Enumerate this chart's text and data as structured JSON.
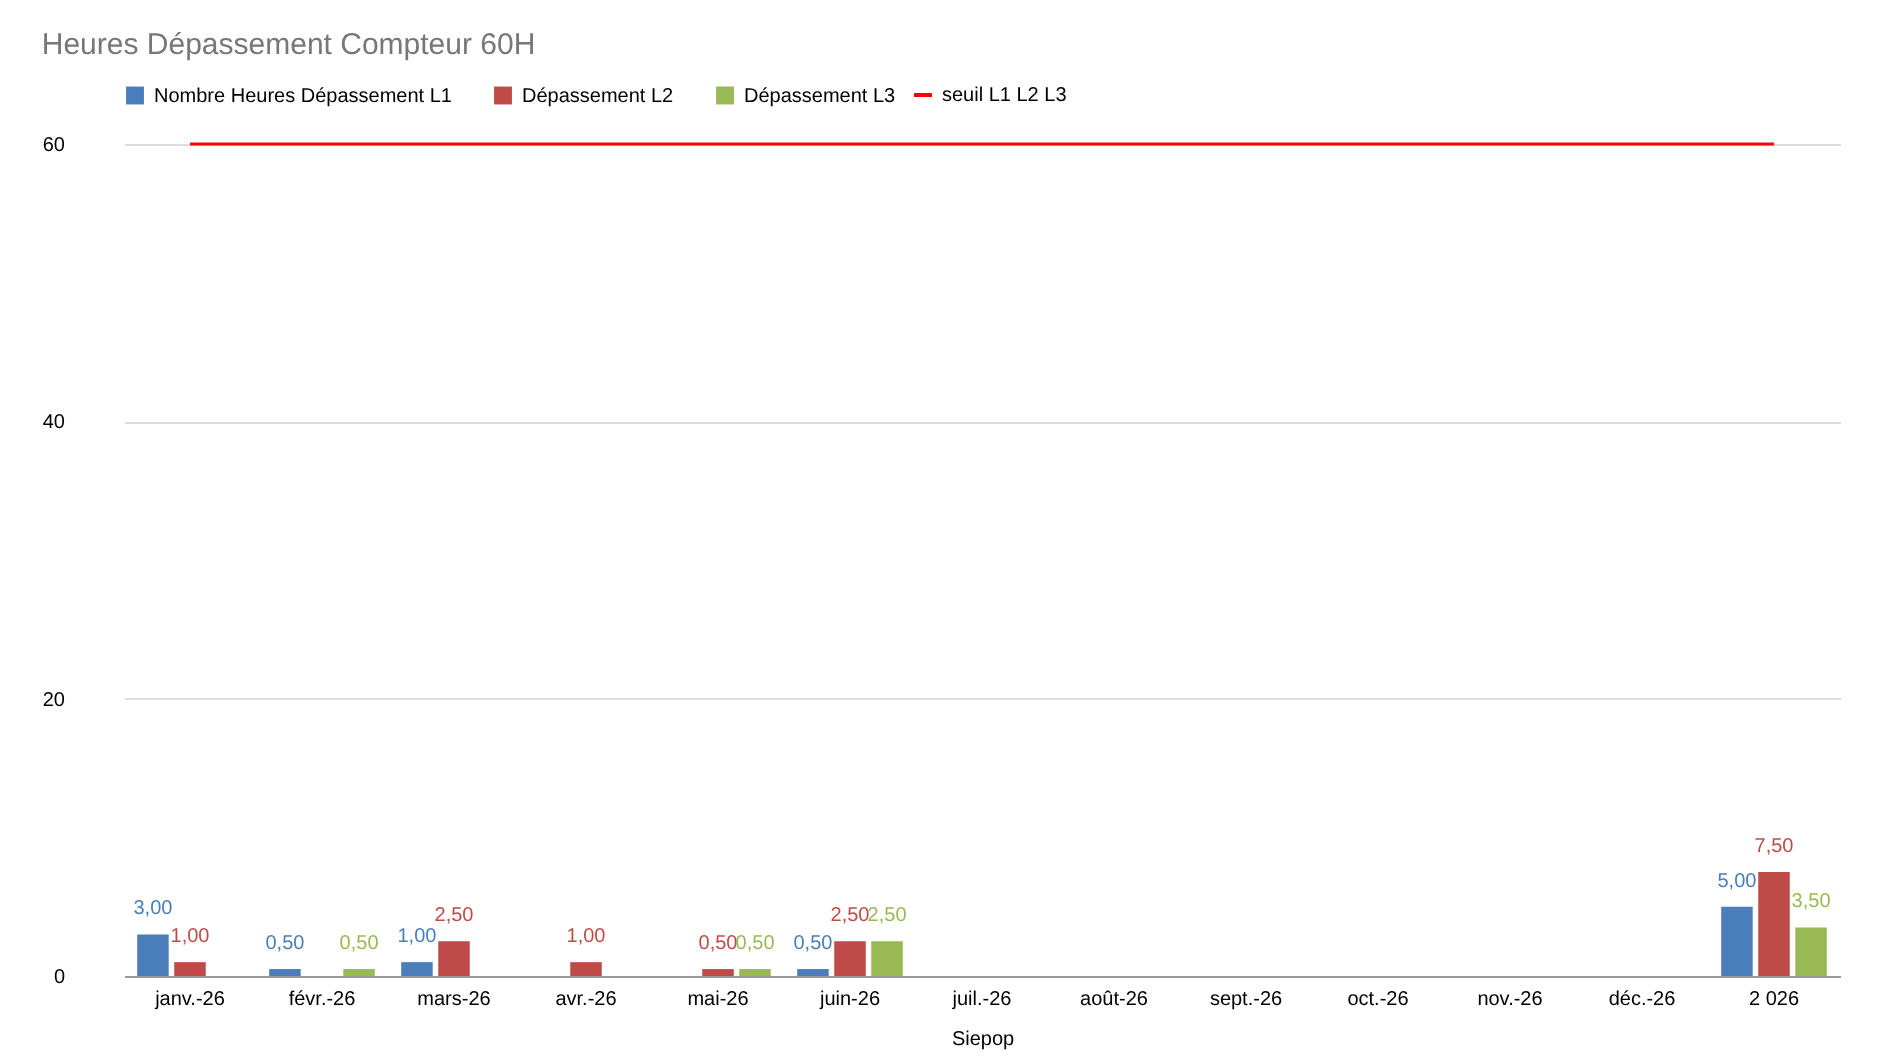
{
  "chart_data": {
    "type": "bar",
    "title": "Heures Dépassement Compteur 60H",
    "xlabel": "Siepop",
    "categories": [
      "janv.-26",
      "févr.-26",
      "mars-26",
      "avr.-26",
      "mai-26",
      "juin-26",
      "juil.-26",
      "août-26",
      "sept.-26",
      "oct.-26",
      "nov.-26",
      "déc.-26",
      "2 026"
    ],
    "series": [
      {
        "name": "Nombre Heures Dépassement L1",
        "color": "#4a7ebb",
        "values": [
          3,
          0.5,
          1,
          0,
          0,
          0.5,
          null,
          null,
          null,
          null,
          null,
          null,
          5
        ],
        "value_labels": [
          "3,00",
          "0,50",
          "1,00",
          null,
          null,
          "0,50",
          null,
          null,
          null,
          null,
          null,
          null,
          "5,00"
        ]
      },
      {
        "name": "Dépassement L2",
        "color": "#be4b48",
        "values": [
          1,
          0,
          2.5,
          1,
          0.5,
          2.5,
          null,
          null,
          null,
          null,
          null,
          null,
          7.5
        ],
        "value_labels": [
          "1,00",
          null,
          "2,50",
          "1,00",
          "0,50",
          "2,50",
          null,
          null,
          null,
          null,
          null,
          null,
          "7,50"
        ]
      },
      {
        "name": "Dépassement L3",
        "color": "#98b954",
        "values": [
          0,
          0.5,
          0,
          0,
          0.5,
          2.5,
          null,
          null,
          null,
          null,
          null,
          null,
          3.5
        ],
        "value_labels": [
          null,
          "0,50",
          null,
          null,
          "0,50",
          "2,50",
          null,
          null,
          null,
          null,
          null,
          null,
          "3,50"
        ]
      },
      {
        "name": "seuil L1 L2 L3",
        "type": "line",
        "color": "#ff0000",
        "values": [
          60,
          60,
          60,
          60,
          60,
          60,
          60,
          60,
          60,
          60,
          60,
          60,
          60
        ]
      }
    ],
    "ylim": [
      0,
      60
    ],
    "yticks": [
      0,
      20,
      40,
      60
    ],
    "grid": "y",
    "legend": "top"
  }
}
